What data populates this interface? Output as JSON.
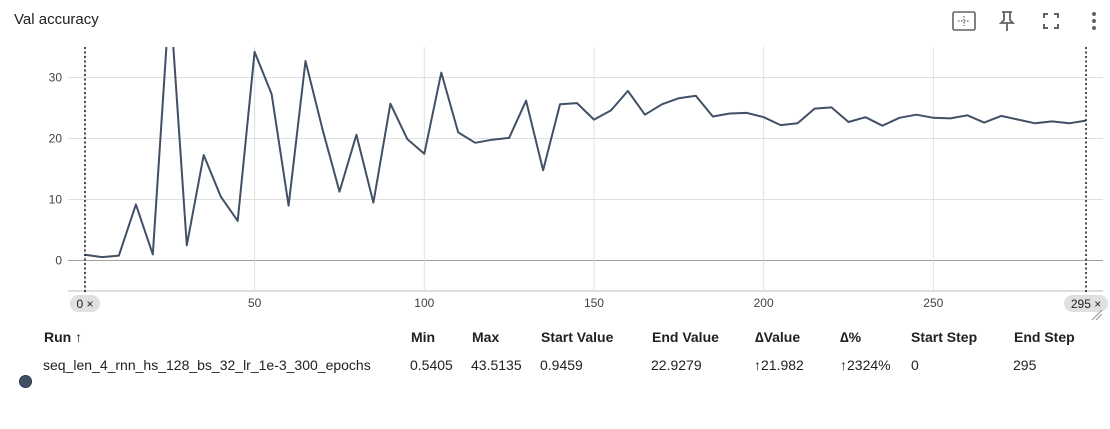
{
  "card": {
    "title": "Val accuracy"
  },
  "toolbar": {
    "icons": [
      "fit-domain-icon",
      "pin-icon",
      "fullscreen-icon",
      "more-vert-icon"
    ]
  },
  "axis": {
    "close_glyph": "×",
    "min_step": "0",
    "max_step": "295"
  },
  "chart_data": {
    "type": "line",
    "xlim": [
      -5,
      300
    ],
    "ylim": [
      -5,
      35
    ],
    "xticks": [
      0,
      50,
      100,
      150,
      200,
      250
    ],
    "yticks": [
      0,
      10,
      20,
      30
    ],
    "grid": true,
    "series": [
      {
        "name": "seq_len_4_rnn_hs_128_bs_32_lr_1e-3_300_epochs",
        "color": "#425066",
        "x": [
          0,
          5,
          10,
          15,
          20,
          25,
          30,
          35,
          40,
          45,
          50,
          55,
          60,
          65,
          70,
          75,
          80,
          85,
          90,
          95,
          100,
          105,
          110,
          115,
          120,
          125,
          130,
          135,
          140,
          145,
          150,
          155,
          160,
          165,
          170,
          175,
          180,
          185,
          190,
          195,
          200,
          205,
          210,
          215,
          220,
          225,
          230,
          235,
          240,
          245,
          250,
          255,
          260,
          265,
          270,
          275,
          280,
          285,
          290,
          295
        ],
        "y": [
          0.9459,
          0.55,
          0.8,
          9.2,
          1.0,
          43.5135,
          2.5,
          17.3,
          10.5,
          6.5,
          34.2,
          27.3,
          9.0,
          32.7,
          21.5,
          11.3,
          20.6,
          9.5,
          25.7,
          19.9,
          17.5,
          30.8,
          21.0,
          19.3,
          19.8,
          20.1,
          26.2,
          14.8,
          25.6,
          25.8,
          23.1,
          24.6,
          27.8,
          23.9,
          25.6,
          26.6,
          27.0,
          23.6,
          24.1,
          24.2,
          23.5,
          22.2,
          22.5,
          24.9,
          25.1,
          22.7,
          23.5,
          22.1,
          23.4,
          23.9,
          23.4,
          23.3,
          23.8,
          22.6,
          23.7,
          23.1,
          22.5,
          22.8,
          22.5,
          22.9279
        ]
      }
    ]
  },
  "table": {
    "headers": {
      "run": "Run ↑",
      "min": "Min",
      "max": "Max",
      "start_value": "Start Value",
      "end_value": "End Value",
      "delta_value": "∆Value",
      "delta_pct": "∆%",
      "start_step": "Start Step",
      "end_step": "End Step"
    },
    "rows": [
      {
        "run": "seq_len_4_rnn_hs_128_bs_32_lr_1e-3_300_epochs",
        "color": "#425066",
        "min": "0.5405",
        "max": "43.5135",
        "start_value": "0.9459",
        "end_value": "22.9279",
        "delta_value": "↑21.982",
        "delta_pct": "↑2324%",
        "start_step": "0",
        "end_step": "295"
      }
    ]
  }
}
